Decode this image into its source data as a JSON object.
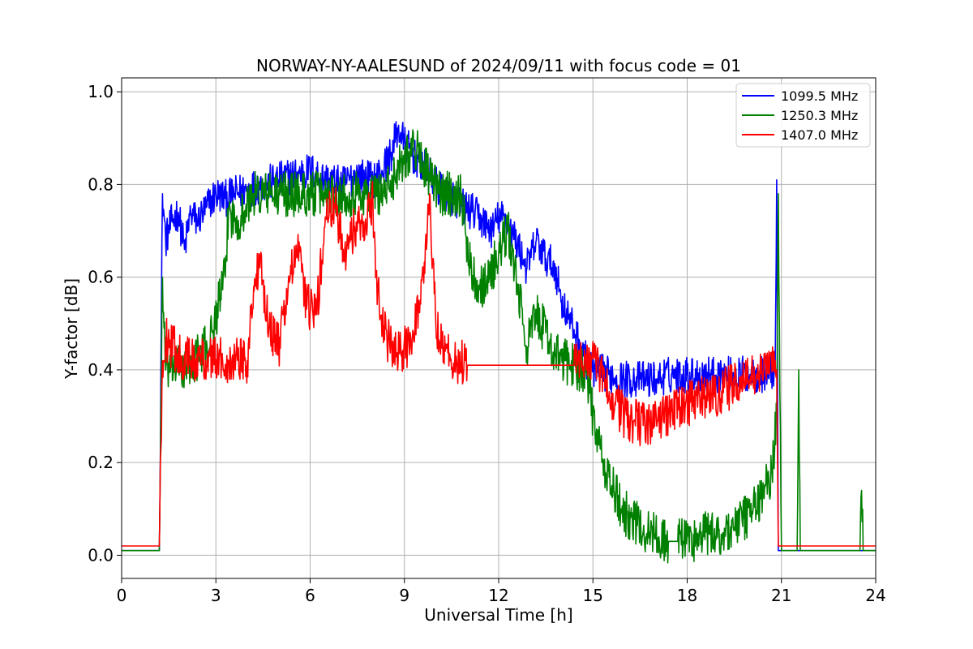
{
  "chart_data": {
    "type": "line",
    "title": "NORWAY-NY-AALESUND of 2024/09/11 with focus code = 01",
    "xlabel": "Universal Time [h]",
    "ylabel": "Y-factor [dB]",
    "xlim": [
      0,
      24
    ],
    "ylim": [
      -0.05,
      1.03
    ],
    "xticks": [
      0,
      3,
      6,
      9,
      12,
      15,
      18,
      21,
      24
    ],
    "yticks": [
      0.0,
      0.2,
      0.4,
      0.6,
      0.8,
      1.0
    ],
    "grid": true,
    "legend_position": "top-right",
    "series": [
      {
        "name": "1099.5 MHz",
        "color": "#0000ff",
        "noise": 0.04,
        "x": [
          0,
          1.2,
          1.3,
          1.4,
          1.6,
          1.8,
          2.0,
          2.2,
          2.4,
          2.7,
          3.0,
          3.3,
          3.6,
          4.0,
          4.5,
          5.0,
          5.5,
          6.0,
          6.5,
          7.0,
          7.5,
          8.0,
          8.3,
          8.6,
          8.8,
          9.0,
          9.3,
          9.6,
          10.0,
          10.3,
          10.6,
          10.9,
          11.2,
          11.5,
          11.8,
          12.0,
          12.3,
          12.6,
          12.9,
          13.2,
          13.5,
          13.8,
          14.0,
          14.3,
          14.5,
          14.7,
          15.0,
          15.5,
          16.0,
          16.5,
          17.0,
          17.5,
          18.0,
          18.5,
          19.0,
          19.5,
          20.0,
          20.5,
          20.8,
          20.85,
          20.9,
          21.0,
          22.0,
          23.0,
          24.0
        ],
        "y": [
          0.01,
          0.01,
          0.78,
          0.68,
          0.72,
          0.74,
          0.66,
          0.74,
          0.72,
          0.75,
          0.78,
          0.77,
          0.78,
          0.79,
          0.8,
          0.81,
          0.82,
          0.83,
          0.81,
          0.8,
          0.82,
          0.81,
          0.83,
          0.87,
          0.92,
          0.89,
          0.86,
          0.84,
          0.8,
          0.78,
          0.77,
          0.75,
          0.74,
          0.72,
          0.7,
          0.73,
          0.72,
          0.67,
          0.62,
          0.68,
          0.64,
          0.62,
          0.55,
          0.5,
          0.47,
          0.43,
          0.4,
          0.39,
          0.38,
          0.38,
          0.38,
          0.39,
          0.39,
          0.39,
          0.39,
          0.39,
          0.39,
          0.39,
          0.4,
          0.81,
          0.01,
          0.01,
          0.01,
          0.01,
          0.01
        ]
      },
      {
        "name": "1250.3 MHz",
        "color": "#008000",
        "noise": 0.05,
        "x": [
          0,
          1.2,
          1.3,
          1.4,
          1.7,
          2.0,
          2.3,
          2.6,
          2.9,
          3.1,
          3.3,
          3.4,
          3.6,
          3.9,
          4.2,
          4.6,
          5.0,
          5.5,
          6.0,
          6.5,
          7.0,
          7.5,
          8.0,
          8.5,
          8.8,
          9.0,
          9.3,
          9.6,
          9.9,
          10.2,
          10.5,
          10.8,
          11.1,
          11.4,
          11.7,
          12.0,
          12.3,
          12.6,
          12.9,
          13.2,
          13.5,
          13.8,
          14.1,
          14.4,
          14.7,
          14.9,
          15.0,
          15.3,
          15.6,
          15.9,
          16.2,
          16.5,
          16.8,
          17.1,
          17.4,
          17.7,
          18.0,
          18.3,
          18.6,
          18.9,
          19.2,
          19.5,
          19.8,
          20.1,
          20.4,
          20.7,
          20.85,
          20.9,
          21.0,
          21.5,
          21.55,
          21.6,
          22.0,
          23.5,
          23.55,
          23.6,
          24.0
        ],
        "y": [
          0.01,
          0.01,
          0.6,
          0.4,
          0.41,
          0.4,
          0.42,
          0.44,
          0.48,
          0.55,
          0.6,
          0.75,
          0.72,
          0.74,
          0.78,
          0.78,
          0.78,
          0.78,
          0.78,
          0.78,
          0.78,
          0.78,
          0.78,
          0.79,
          0.84,
          0.86,
          0.88,
          0.85,
          0.8,
          0.78,
          0.78,
          0.78,
          0.62,
          0.58,
          0.6,
          0.65,
          0.7,
          0.58,
          0.45,
          0.52,
          0.48,
          0.43,
          0.42,
          0.41,
          0.4,
          0.35,
          0.3,
          0.2,
          0.15,
          0.1,
          0.08,
          0.06,
          0.05,
          0.04,
          0.03,
          0.03,
          0.04,
          0.03,
          0.05,
          0.04,
          0.05,
          0.06,
          0.08,
          0.1,
          0.13,
          0.18,
          0.3,
          0.78,
          0.01,
          0.01,
          0.4,
          0.01,
          0.01,
          0.01,
          0.14,
          0.01,
          0.01
        ]
      },
      {
        "name": "1407.0 MHz",
        "color": "#ff0000",
        "noise": 0.05,
        "x": [
          0,
          1.2,
          1.3,
          1.4,
          1.6,
          1.9,
          2.2,
          2.5,
          2.8,
          3.1,
          3.4,
          3.7,
          4.0,
          4.2,
          4.4,
          4.7,
          5.0,
          5.3,
          5.6,
          5.9,
          6.2,
          6.5,
          6.8,
          7.1,
          7.4,
          7.7,
          8.0,
          8.1,
          8.3,
          8.6,
          8.9,
          9.2,
          9.5,
          9.7,
          9.8,
          10.0,
          10.3,
          10.6,
          11.0,
          12.0,
          13.0,
          14.0,
          14.4,
          14.5,
          14.8,
          15.1,
          15.4,
          15.7,
          16.0,
          16.3,
          16.6,
          16.9,
          17.2,
          17.5,
          17.8,
          18.1,
          18.4,
          18.7,
          19.0,
          19.3,
          19.6,
          19.9,
          20.2,
          20.5,
          20.8,
          20.85,
          20.9,
          21.0,
          24.0
        ],
        "y": [
          0.02,
          0.02,
          0.42,
          0.47,
          0.45,
          0.43,
          0.42,
          0.42,
          0.43,
          0.42,
          0.42,
          0.43,
          0.42,
          0.58,
          0.62,
          0.5,
          0.45,
          0.58,
          0.66,
          0.54,
          0.52,
          0.73,
          0.75,
          0.66,
          0.7,
          0.72,
          0.76,
          0.6,
          0.5,
          0.44,
          0.43,
          0.47,
          0.55,
          0.66,
          0.78,
          0.5,
          0.44,
          0.42,
          0.41,
          0.41,
          0.41,
          0.41,
          0.41,
          0.41,
          0.43,
          0.41,
          0.37,
          0.33,
          0.3,
          0.29,
          0.28,
          0.29,
          0.3,
          0.31,
          0.32,
          0.33,
          0.34,
          0.34,
          0.35,
          0.36,
          0.37,
          0.38,
          0.39,
          0.4,
          0.42,
          0.4,
          0.02,
          0.02,
          0.02
        ]
      }
    ]
  }
}
